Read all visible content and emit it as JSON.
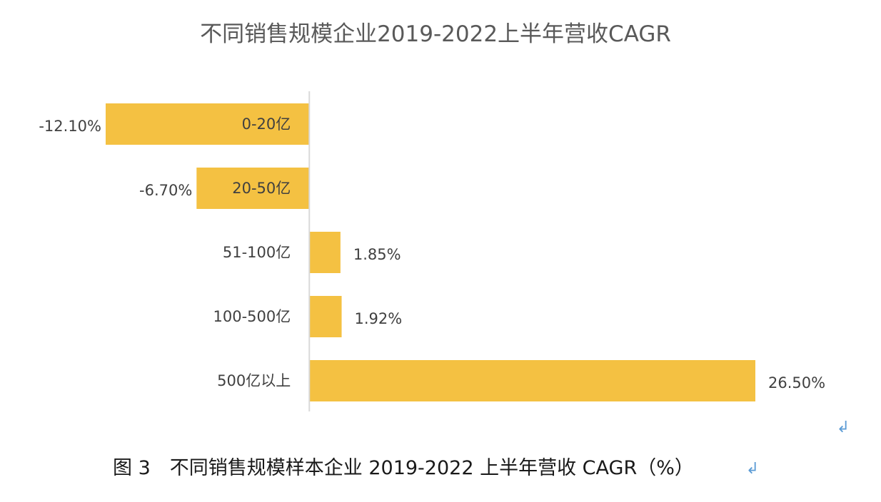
{
  "chart_data": {
    "type": "bar",
    "orientation": "horizontal",
    "title": "不同销售规模企业2019-2022上半年营收CAGR",
    "categories": [
      "0-20亿",
      "20-50亿",
      "51-100亿",
      "100-500亿",
      "500亿以上"
    ],
    "values": [
      -12.1,
      -6.7,
      1.85,
      1.92,
      26.5
    ],
    "value_labels": [
      "-12.10%",
      "-6.70%",
      "1.85%",
      "1.92%",
      "26.50%"
    ],
    "xlabel": "",
    "ylabel": "",
    "xlim": [
      -12.1,
      26.5
    ],
    "grid": false,
    "legend": "none",
    "bar_color": "#F4C142",
    "axis_color": "#d9d9d9"
  },
  "caption": {
    "text": "图 3　不同销售规模样本企业 2019-2022 上半年营收 CAGR（%）",
    "paragraph_mark": "↲"
  },
  "stray_paragraph_mark": "↲"
}
